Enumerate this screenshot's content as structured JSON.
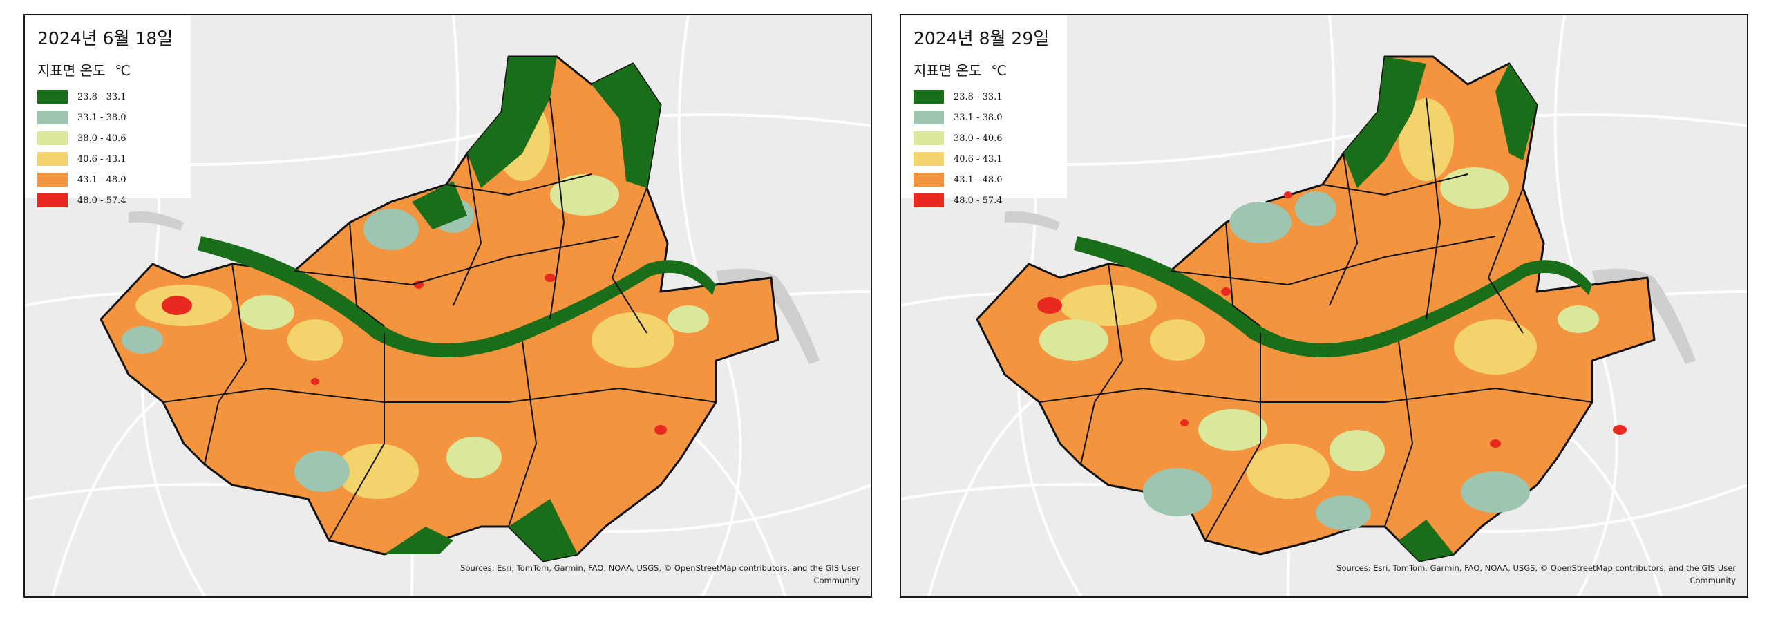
{
  "maps": [
    {
      "title": "2024년 6월 18일",
      "legend_subtitle": "지표면 온도",
      "legend_unit": "℃",
      "classes": [
        {
          "range": "23.8 - 33.1",
          "color": "#1a6e1a"
        },
        {
          "range": "33.1 - 38.0",
          "color": "#9dc5b0"
        },
        {
          "range": "38.0 - 40.6",
          "color": "#d9e89a"
        },
        {
          "range": "40.6 - 43.1",
          "color": "#f3d36b"
        },
        {
          "range": "43.1 - 48.0",
          "color": "#f5943e"
        },
        {
          "range": "48.0 - 57.4",
          "color": "#e8291f"
        }
      ],
      "attribution": "Sources: Esri, TomTom, Garmin, FAO, NOAA, USGS, © OpenStreetMap contributors, and the GIS User Community"
    },
    {
      "title": "2024년 8월 29일",
      "legend_subtitle": "지표면 온도",
      "legend_unit": "℃",
      "classes": [
        {
          "range": "23.8 - 33.1",
          "color": "#1a6e1a"
        },
        {
          "range": "33.1 - 38.0",
          "color": "#9dc5b0"
        },
        {
          "range": "38.0 - 40.6",
          "color": "#d9e89a"
        },
        {
          "range": "40.6 - 43.1",
          "color": "#f3d36b"
        },
        {
          "range": "43.1 - 48.0",
          "color": "#f5943e"
        },
        {
          "range": "48.0 - 57.4",
          "color": "#e8291f"
        }
      ],
      "attribution": "Sources: Esri, TomTom, Garmin, FAO, NOAA, USGS, © OpenStreetMap contributors, and the GIS User Community"
    }
  ]
}
